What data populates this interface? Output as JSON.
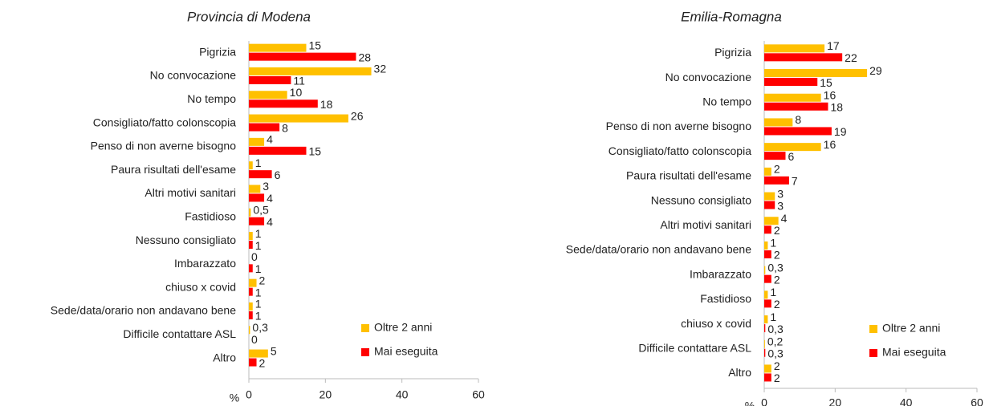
{
  "chart_data": [
    {
      "type": "bar",
      "orientation": "horizontal",
      "title": "Provincia di Modena",
      "x_label": "%",
      "categories": [
        "Pigrizia",
        "No convocazione",
        "No tempo",
        "Consigliato/fatto colonscopia",
        "Penso di non averne bisogno",
        "Paura risultati dell'esame",
        "Altri motivi sanitari",
        "Fastidioso",
        "Nessuno consigliato",
        "Imbarazzato",
        "chiuso x covid",
        "Sede/data/orario non andavano bene",
        "Difficile contattare ASL",
        "Altro"
      ],
      "series": [
        {
          "name": "Oltre 2 anni",
          "color": "#FFC000",
          "values": [
            15,
            32,
            10,
            26,
            4,
            1,
            3,
            0.5,
            1,
            0,
            2,
            1,
            0.3,
            5
          ],
          "value_labels": [
            "15",
            "32",
            "10",
            "26",
            "4",
            "1",
            "3",
            "0,5",
            "1",
            "0",
            "2",
            "1",
            "0,3",
            "5"
          ]
        },
        {
          "name": "Mai eseguita",
          "color": "#FF0000",
          "values": [
            28,
            11,
            18,
            8,
            15,
            6,
            4,
            4,
            1,
            1,
            1,
            1,
            0,
            2
          ]
        }
      ],
      "xlim": [
        0,
        60
      ],
      "xticks": [
        0,
        20,
        40,
        60
      ],
      "legend": "lower right"
    },
    {
      "type": "bar",
      "orientation": "horizontal",
      "title": "Emilia-Romagna",
      "x_label": "%",
      "categories": [
        "Pigrizia",
        "No convocazione",
        "No tempo",
        "Penso di non averne bisogno",
        "Consigliato/fatto colonscopia",
        "Paura risultati dell'esame",
        "Nessuno consigliato",
        "Altri motivi sanitari",
        "Sede/data/orario non andavano bene",
        "Imbarazzato",
        "Fastidioso",
        "chiuso x covid",
        "Difficile contattare ASL",
        "Altro"
      ],
      "series": [
        {
          "name": "Oltre 2 anni",
          "color": "#FFC000",
          "values": [
            17,
            29,
            16,
            8,
            16,
            2,
            3,
            4,
            1,
            0.3,
            1,
            1,
            0.2,
            2
          ],
          "value_labels": [
            "17",
            "29",
            "16",
            "8",
            "16",
            "2",
            "3",
            "4",
            "1",
            "0,3",
            "1",
            "1",
            "0,2",
            "2"
          ]
        },
        {
          "name": "Mai eseguita",
          "color": "#FF0000",
          "values": [
            22,
            15,
            18,
            19,
            6,
            7,
            3,
            2,
            2,
            2,
            2,
            0.3,
            0.3,
            2
          ],
          "value_labels": [
            "22",
            "15",
            "18",
            "19",
            "6",
            "7",
            "3",
            "2",
            "2",
            "2",
            "2",
            "0,3",
            "0,3",
            "2"
          ]
        }
      ],
      "xlim": [
        0,
        60
      ],
      "xticks": [
        0,
        20,
        40,
        60
      ],
      "legend": "lower right"
    }
  ]
}
